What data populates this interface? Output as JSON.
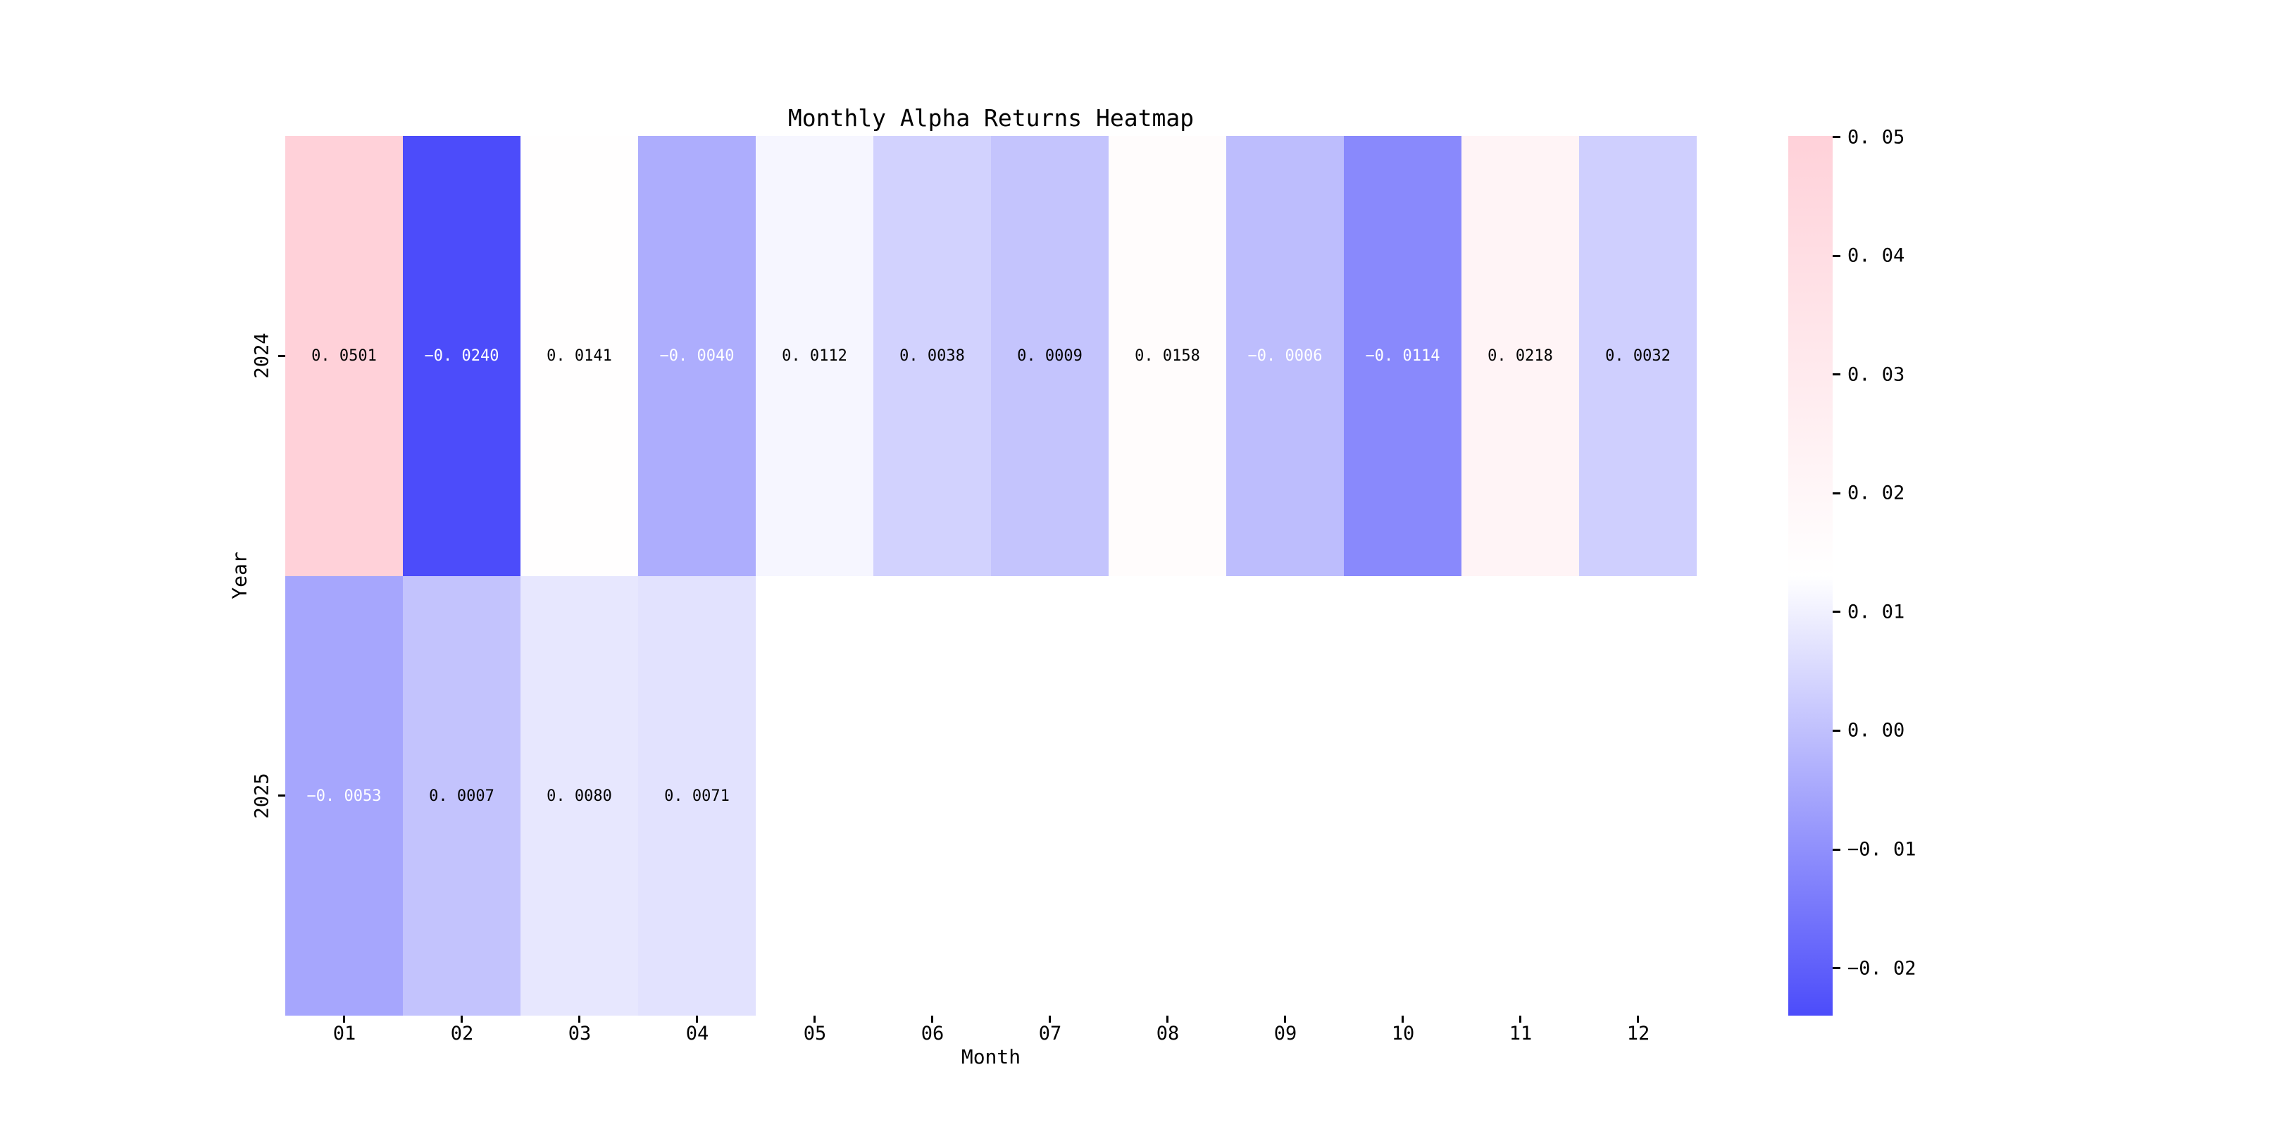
{
  "figure": {
    "background_color": "#ffffff"
  },
  "chart_data": {
    "type": "heatmap",
    "title": "Monthly Alpha Returns Heatmap",
    "xlabel": "Month",
    "ylabel": "Year",
    "x_categories": [
      "01",
      "02",
      "03",
      "04",
      "05",
      "06",
      "07",
      "08",
      "09",
      "10",
      "11",
      "12"
    ],
    "y_categories": [
      "2024",
      "2025"
    ],
    "series": [
      {
        "name": "2024",
        "values": [
          0.0501,
          -0.024,
          0.0141,
          -0.004,
          0.0112,
          0.0038,
          0.0009,
          0.0158,
          -0.0006,
          -0.0114,
          0.0218,
          0.0032
        ]
      },
      {
        "name": "2025",
        "values": [
          -0.0053,
          0.0007,
          0.008,
          0.0071,
          null,
          null,
          null,
          null,
          null,
          null,
          null,
          null
        ]
      }
    ],
    "annotation_decimals": 4,
    "vmin": -0.024,
    "vmax": 0.0501,
    "colorbar_ticks": [
      0.05,
      0.04,
      0.03,
      0.02,
      0.01,
      0.0,
      -0.01,
      -0.02
    ],
    "colorbar_tick_decimals": 2,
    "colormap": {
      "min_color": "#4C4CFA",
      "center_color": "#FFFFFF",
      "max_color": "#FFD1D9"
    },
    "annotation_text_color_positive": "#000000",
    "annotation_text_color_negative": "#FFFFFF",
    "grid": false,
    "legend_position": "right-colorbar"
  }
}
